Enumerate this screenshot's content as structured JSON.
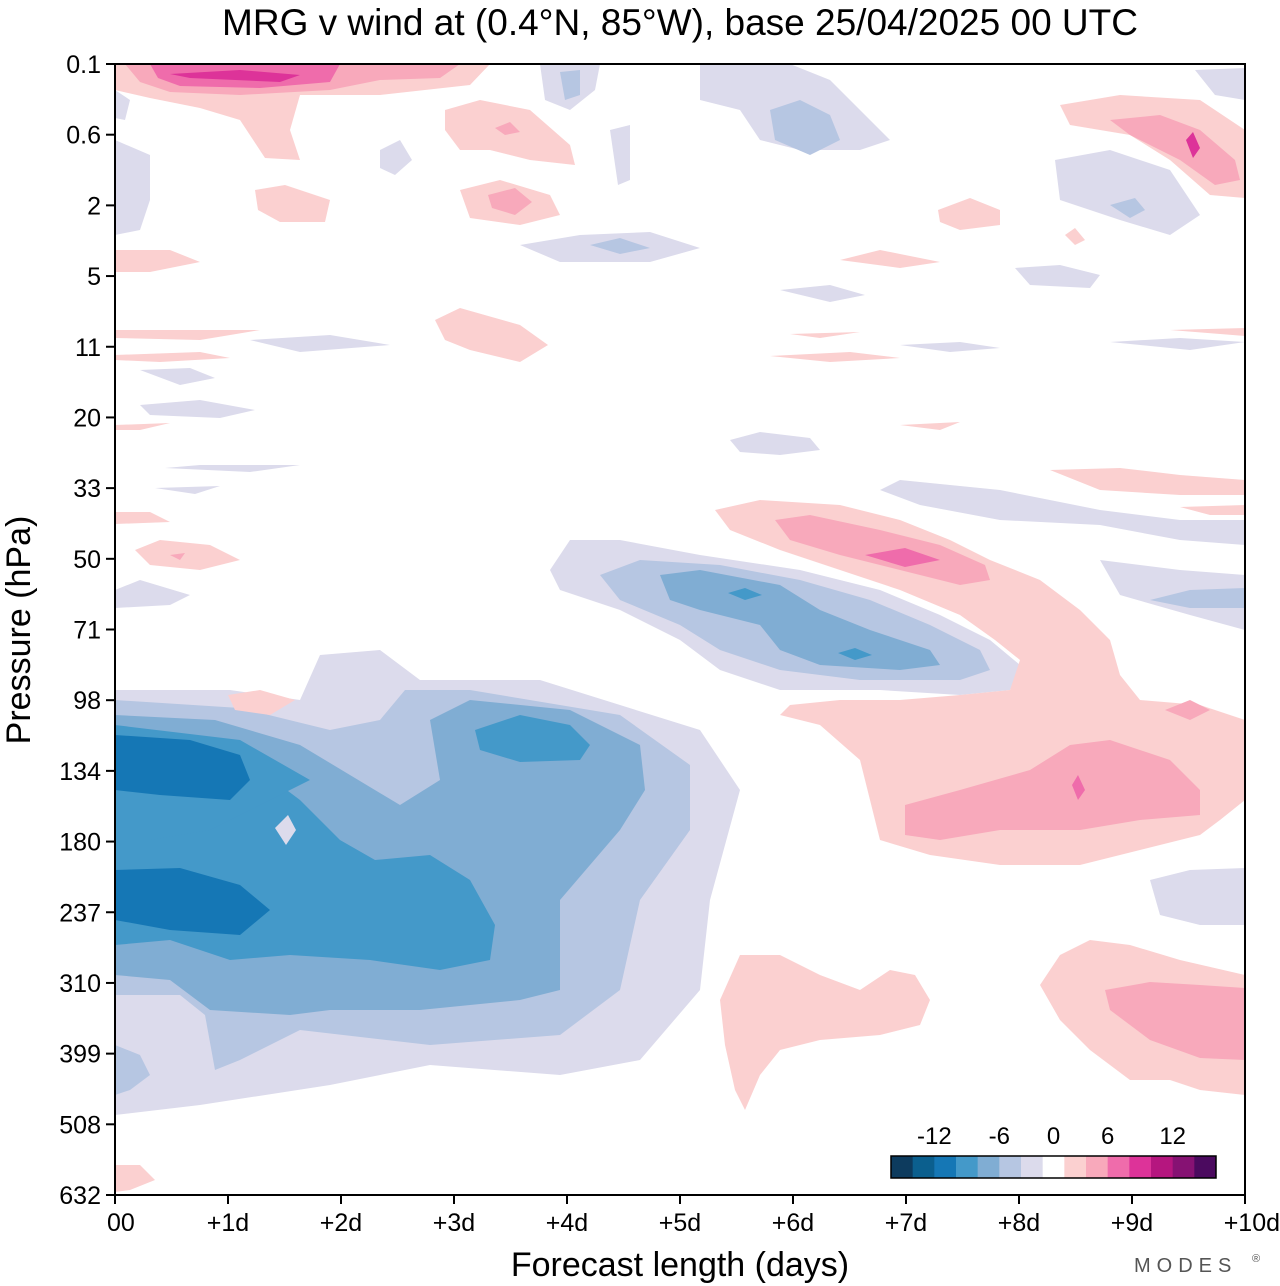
{
  "chart_data": {
    "type": "heatmap",
    "title": "MRG v wind at (0.4°N, 85°W),  base 25/04/2025  00 UTC",
    "xlabel": "Forecast length (days)",
    "ylabel": "Pressure (hPa)",
    "xlim": [
      0,
      10
    ],
    "x_ticks": [
      "00",
      "+1d",
      "+2d",
      "+3d",
      "+4d",
      "+5d",
      "+6d",
      "+7d",
      "+8d",
      "+9d",
      "+10d"
    ],
    "y_ticks": [
      "0.1",
      "0.6",
      "2",
      "5",
      "11",
      "20",
      "33",
      "50",
      "71",
      "98",
      "134",
      "180",
      "237",
      "310",
      "399",
      "508",
      "632"
    ],
    "ylim": [
      0.1,
      632
    ],
    "y_scale": "log-pressure (decreasing upward)",
    "colorbar": {
      "tick_labels": [
        "-12",
        "-6",
        "0",
        "6",
        "12"
      ],
      "levels": [
        -14,
        -12,
        -10,
        -8,
        -6,
        -4,
        -2,
        2,
        4,
        6,
        8,
        10,
        12,
        14
      ],
      "colors": [
        "#0d3b5e",
        "#0b5f8e",
        "#1577b5",
        "#4499c9",
        "#80add3",
        "#b6c6e2",
        "#dcdbec",
        "#ffffff",
        "#fbd0d0",
        "#f8a9bb",
        "#ef6cab",
        "#dd3399",
        "#b5167f",
        "#861273",
        "#4b0a5f"
      ]
    },
    "features": [
      {
        "x": 1.2,
        "y": "0.1",
        "value": 12
      },
      {
        "x": 3.5,
        "y": "2",
        "value": 6
      },
      {
        "x": 9.5,
        "y": "0.6",
        "value": 9
      },
      {
        "x": 7.0,
        "y": "50",
        "value": 10
      },
      {
        "x": 8.6,
        "y": "134",
        "value": 8
      },
      {
        "x": 9.5,
        "y": "310",
        "value": 6
      },
      {
        "x": 5.5,
        "y": "71",
        "value": -10
      },
      {
        "x": 6.5,
        "y": "71",
        "value": -10
      },
      {
        "x": 0.6,
        "y": "134",
        "value": -12
      },
      {
        "x": 0.6,
        "y": "237",
        "value": -12
      },
      {
        "x": 4.0,
        "y": "134",
        "value": -10
      },
      {
        "x": 2.5,
        "y": "237",
        "value": -8
      }
    ]
  },
  "credit": "MODES",
  "credit_mark": "®"
}
